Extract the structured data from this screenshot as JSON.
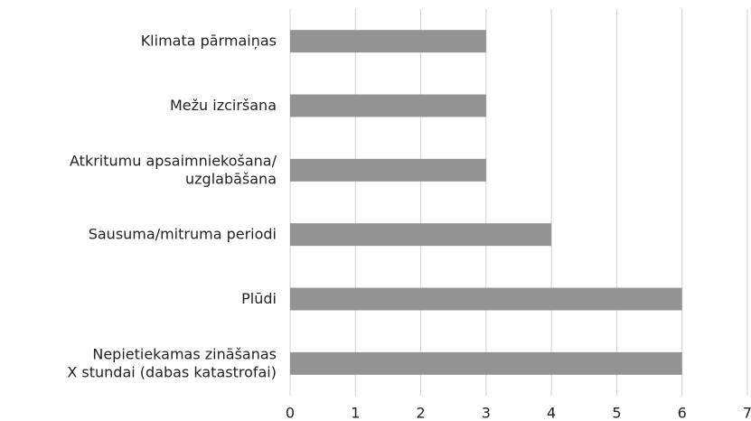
{
  "chart_data": {
    "type": "barh",
    "categories": [
      "Klimata pārmaiņas",
      "Mežu izciršana",
      "Atkritumu apsaimniekošana/\nuzglabāšana",
      "Sausuma/mitruma periodi",
      "Plūdi",
      "Nepietiekamas zināšanas\nX stundai (dabas katastrofai)"
    ],
    "values": [
      3,
      3,
      3,
      4,
      6,
      6
    ],
    "color": "#939393",
    "xlim": [
      0,
      7
    ],
    "xticks": [
      0,
      1,
      2,
      3,
      4,
      5,
      6,
      7
    ],
    "grid": true
  }
}
